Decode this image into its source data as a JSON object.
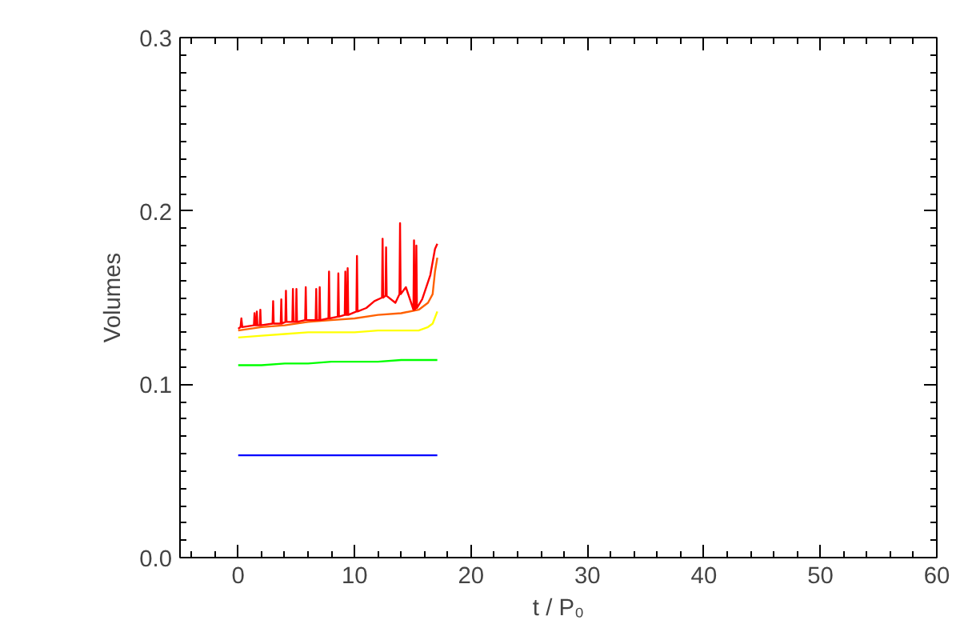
{
  "chart_data": {
    "type": "line",
    "xlabel": "t / P₀",
    "ylabel": "Volumes",
    "xlim": [
      -5,
      60
    ],
    "ylim": [
      0,
      0.3
    ],
    "xticks": [
      0,
      10,
      20,
      30,
      40,
      50,
      60
    ],
    "yticks": [
      {
        "value": 0,
        "label": "0.0"
      },
      {
        "value": 0.1,
        "label": "0.1"
      },
      {
        "value": 0.2,
        "label": "0.2"
      },
      {
        "value": 0.3,
        "label": "0.3"
      }
    ],
    "grid": false,
    "marker": "none",
    "line_style": "solid",
    "series": [
      {
        "color": "#0000ff",
        "x": [
          0,
          2,
          4,
          6,
          8,
          10,
          12,
          14,
          16,
          17.1
        ],
        "values": [
          0.059,
          0.059,
          0.059,
          0.059,
          0.059,
          0.059,
          0.059,
          0.059,
          0.059,
          0.059
        ]
      },
      {
        "color": "#00ff00",
        "x": [
          0,
          2,
          4,
          6,
          8,
          10,
          12,
          14,
          16,
          17.1
        ],
        "values": [
          0.111,
          0.111,
          0.112,
          0.112,
          0.113,
          0.113,
          0.113,
          0.114,
          0.114,
          0.114
        ]
      },
      {
        "color": "#ffff00",
        "x": [
          0,
          2,
          4,
          6,
          8,
          10,
          12,
          14,
          15.5,
          16.3,
          16.7,
          17.1
        ],
        "values": [
          0.127,
          0.128,
          0.129,
          0.13,
          0.13,
          0.13,
          0.131,
          0.131,
          0.131,
          0.133,
          0.135,
          0.142
        ]
      },
      {
        "color": "#ff6000",
        "x": [
          0,
          2,
          4,
          6,
          8,
          10,
          12,
          14,
          15.5,
          16.3,
          16.7,
          16.9,
          17.1
        ],
        "values": [
          0.131,
          0.133,
          0.134,
          0.136,
          0.137,
          0.138,
          0.14,
          0.141,
          0.143,
          0.147,
          0.152,
          0.165,
          0.173
        ]
      },
      {
        "color": "#ff0000",
        "x": [
          0,
          0.2,
          0.27,
          0.35,
          1.35,
          1.4,
          1.45,
          1.55,
          1.6,
          1.65,
          1.85,
          1.9,
          1.95,
          2.95,
          3.0,
          3.05,
          3.65,
          3.7,
          3.75,
          4.05,
          4.1,
          4.15,
          4.65,
          4.7,
          4.75,
          4.95,
          5.0,
          5.05,
          5.75,
          5.8,
          5.85,
          6.65,
          6.7,
          6.75,
          6.95,
          7.0,
          7.05,
          7.75,
          7.8,
          7.85,
          8.55,
          8.6,
          8.65,
          9.15,
          9.2,
          9.25,
          9.35,
          9.4,
          9.45,
          10.15,
          10.2,
          10.25,
          11.0,
          11.7,
          12.35,
          12.4,
          12.45,
          12.65,
          12.7,
          12.75,
          13.5,
          13.85,
          13.9,
          13.95,
          14.4,
          15.05,
          15.1,
          15.15,
          15.25,
          15.3,
          15.35,
          15.8,
          16.5,
          16.9,
          17.1
        ],
        "values": [
          0.132,
          0.133,
          0.138,
          0.133,
          0.134,
          0.141,
          0.134,
          0.134,
          0.142,
          0.134,
          0.134,
          0.143,
          0.134,
          0.135,
          0.148,
          0.135,
          0.135,
          0.149,
          0.135,
          0.136,
          0.154,
          0.136,
          0.136,
          0.155,
          0.136,
          0.136,
          0.155,
          0.136,
          0.137,
          0.156,
          0.137,
          0.137,
          0.155,
          0.137,
          0.137,
          0.156,
          0.137,
          0.138,
          0.165,
          0.138,
          0.139,
          0.164,
          0.139,
          0.14,
          0.165,
          0.14,
          0.14,
          0.167,
          0.14,
          0.142,
          0.174,
          0.142,
          0.144,
          0.148,
          0.15,
          0.184,
          0.15,
          0.151,
          0.179,
          0.151,
          0.147,
          0.152,
          0.193,
          0.152,
          0.156,
          0.143,
          0.183,
          0.143,
          0.144,
          0.18,
          0.144,
          0.149,
          0.163,
          0.178,
          0.181
        ]
      }
    ]
  }
}
